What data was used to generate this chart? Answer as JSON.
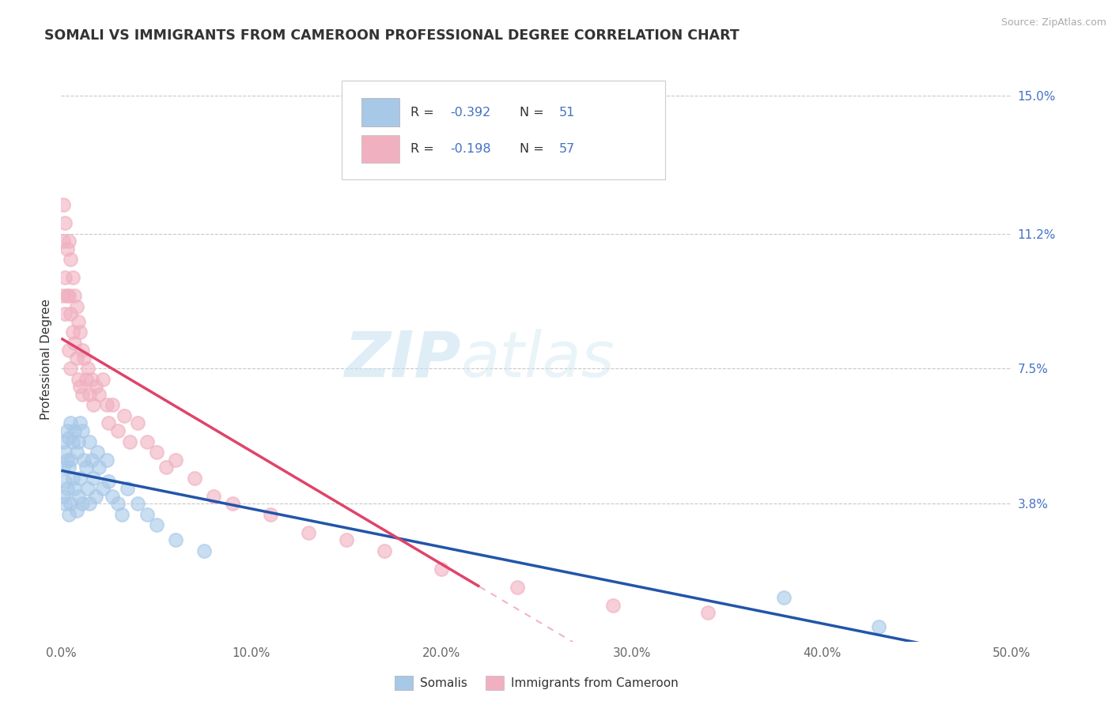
{
  "title": "SOMALI VS IMMIGRANTS FROM CAMEROON PROFESSIONAL DEGREE CORRELATION CHART",
  "source": "Source: ZipAtlas.com",
  "ylabel": "Professional Degree",
  "legend_labels": [
    "Somalis",
    "Immigrants from Cameroon"
  ],
  "r_blue": "-0.392",
  "n_blue": "51",
  "r_pink": "-0.198",
  "n_pink": "57",
  "xlim": [
    0.0,
    0.5
  ],
  "ylim": [
    0.0,
    0.155
  ],
  "xticks": [
    0.0,
    0.1,
    0.2,
    0.3,
    0.4,
    0.5
  ],
  "xticklabels": [
    "0.0%",
    "10.0%",
    "20.0%",
    "30.0%",
    "40.0%",
    "50.0%"
  ],
  "yticks": [
    0.038,
    0.075,
    0.112,
    0.15
  ],
  "yticklabels": [
    "3.8%",
    "7.5%",
    "11.2%",
    "15.0%"
  ],
  "color_blue": "#a8c8e8",
  "color_pink": "#f0b0c0",
  "line_blue": "#2255aa",
  "line_pink": "#e0436a",
  "grid_color": "#bbbbbb",
  "background": "#ffffff",
  "somali_x": [
    0.001,
    0.001,
    0.001,
    0.002,
    0.002,
    0.002,
    0.003,
    0.003,
    0.003,
    0.004,
    0.004,
    0.004,
    0.005,
    0.005,
    0.005,
    0.006,
    0.006,
    0.007,
    0.007,
    0.008,
    0.008,
    0.009,
    0.009,
    0.01,
    0.01,
    0.011,
    0.011,
    0.012,
    0.013,
    0.014,
    0.015,
    0.015,
    0.016,
    0.017,
    0.018,
    0.019,
    0.02,
    0.022,
    0.024,
    0.025,
    0.027,
    0.03,
    0.032,
    0.035,
    0.04,
    0.045,
    0.05,
    0.06,
    0.075,
    0.38,
    0.43
  ],
  "somali_y": [
    0.055,
    0.048,
    0.04,
    0.052,
    0.044,
    0.038,
    0.058,
    0.05,
    0.042,
    0.056,
    0.048,
    0.035,
    0.06,
    0.05,
    0.038,
    0.055,
    0.045,
    0.058,
    0.042,
    0.052,
    0.036,
    0.055,
    0.04,
    0.06,
    0.045,
    0.058,
    0.038,
    0.05,
    0.048,
    0.042,
    0.055,
    0.038,
    0.05,
    0.045,
    0.04,
    0.052,
    0.048,
    0.042,
    0.05,
    0.044,
    0.04,
    0.038,
    0.035,
    0.042,
    0.038,
    0.035,
    0.032,
    0.028,
    0.025,
    0.012,
    0.004
  ],
  "cameroon_x": [
    0.001,
    0.001,
    0.001,
    0.002,
    0.002,
    0.002,
    0.003,
    0.003,
    0.004,
    0.004,
    0.004,
    0.005,
    0.005,
    0.005,
    0.006,
    0.006,
    0.007,
    0.007,
    0.008,
    0.008,
    0.009,
    0.009,
    0.01,
    0.01,
    0.011,
    0.011,
    0.012,
    0.013,
    0.014,
    0.015,
    0.016,
    0.017,
    0.018,
    0.02,
    0.022,
    0.024,
    0.025,
    0.027,
    0.03,
    0.033,
    0.036,
    0.04,
    0.045,
    0.05,
    0.055,
    0.06,
    0.07,
    0.08,
    0.09,
    0.11,
    0.13,
    0.15,
    0.17,
    0.2,
    0.24,
    0.29,
    0.34
  ],
  "cameroon_y": [
    0.12,
    0.11,
    0.095,
    0.115,
    0.1,
    0.09,
    0.108,
    0.095,
    0.11,
    0.095,
    0.08,
    0.105,
    0.09,
    0.075,
    0.1,
    0.085,
    0.095,
    0.082,
    0.092,
    0.078,
    0.088,
    0.072,
    0.085,
    0.07,
    0.08,
    0.068,
    0.078,
    0.072,
    0.075,
    0.068,
    0.072,
    0.065,
    0.07,
    0.068,
    0.072,
    0.065,
    0.06,
    0.065,
    0.058,
    0.062,
    0.055,
    0.06,
    0.055,
    0.052,
    0.048,
    0.05,
    0.045,
    0.04,
    0.038,
    0.035,
    0.03,
    0.028,
    0.025,
    0.02,
    0.015,
    0.01,
    0.008
  ]
}
